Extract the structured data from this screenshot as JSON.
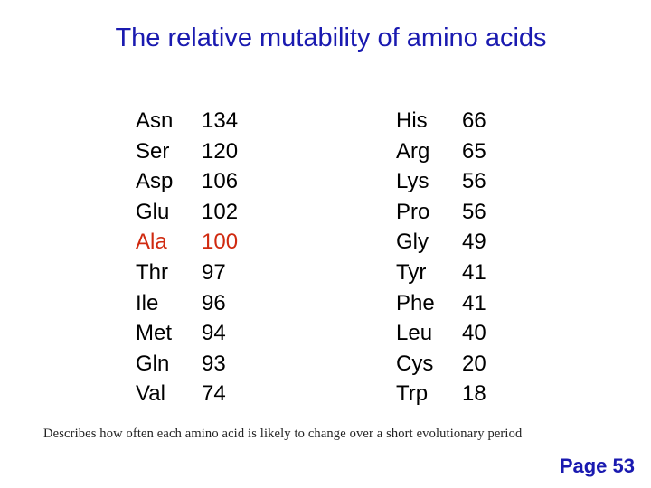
{
  "title": "The relative mutability of amino acids",
  "highlight_color": "#d02a10",
  "left_column": [
    {
      "name": "Asn",
      "value": "134"
    },
    {
      "name": "Ser",
      "value": "120"
    },
    {
      "name": "Asp",
      "value": "106"
    },
    {
      "name": "Glu",
      "value": "102"
    },
    {
      "name": "Ala",
      "value": "100",
      "highlight": true
    },
    {
      "name": "Thr",
      "value": "97"
    },
    {
      "name": "Ile",
      "value": "96"
    },
    {
      "name": "Met",
      "value": "94"
    },
    {
      "name": "Gln",
      "value": "93"
    },
    {
      "name": "Val",
      "value": "74"
    }
  ],
  "right_column": [
    {
      "name": "His",
      "value": "66"
    },
    {
      "name": "Arg",
      "value": "65"
    },
    {
      "name": "Lys",
      "value": "56"
    },
    {
      "name": "Pro",
      "value": "56"
    },
    {
      "name": "Gly",
      "value": "49"
    },
    {
      "name": "Tyr",
      "value": "41"
    },
    {
      "name": "Phe",
      "value": "41"
    },
    {
      "name": "Leu",
      "value": "40"
    },
    {
      "name": "Cys",
      "value": "20"
    },
    {
      "name": "Trp",
      "value": "18"
    }
  ],
  "caption": "Describes how often each amino acid is likely to change over a short evolutionary period",
  "page_label": "Page 53"
}
